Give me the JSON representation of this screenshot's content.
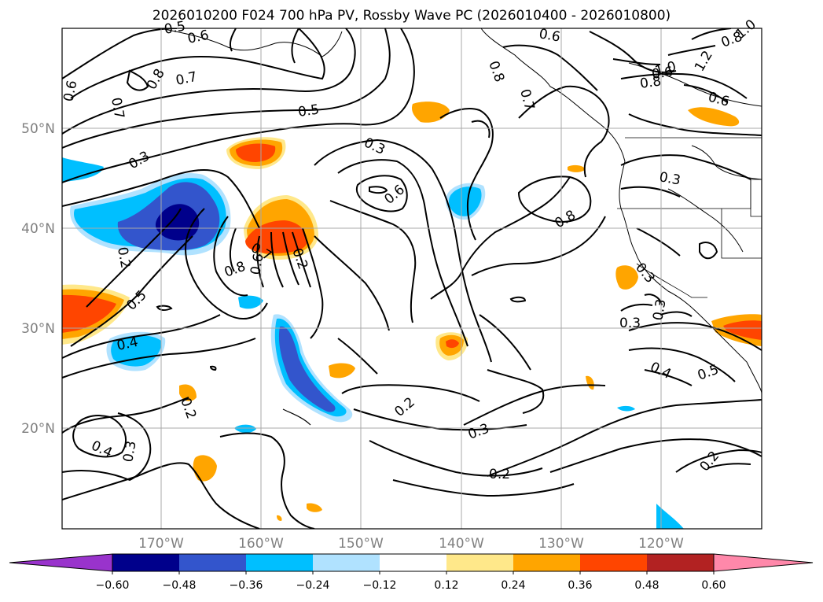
{
  "title": "2026010200 F024 700 hPa PV, Rossby Wave PC (2026010400 - 2026010800)",
  "colors": {
    "ocean": "#ffffff",
    "contour": "#000000",
    "grid": "#a9a9a9",
    "axis_label": "#808080"
  },
  "axes": {
    "lat_labels": [
      "20°N",
      "30°N",
      "40°N",
      "50°N"
    ],
    "lon_labels": [
      "170°W",
      "160°W",
      "150°W",
      "140°W",
      "130°W",
      "120°W"
    ]
  },
  "colorbar": {
    "ticks": [
      "−0.60",
      "−0.48",
      "−0.36",
      "−0.24",
      "−0.12",
      "0.12",
      "0.24",
      "0.36",
      "0.48",
      "0.60"
    ],
    "colors": [
      "#9933cc",
      "#00008b",
      "#3355cc",
      "#00bfff",
      "#b0e2ff",
      "#ffffff",
      "#ffe88a",
      "#ffa500",
      "#ff4500",
      "#b22222",
      "#ff88aa"
    ]
  },
  "contour_labels": [
    "0.5",
    "0.6",
    "0.6",
    "0.7",
    "0.8",
    "0.7",
    "0.6",
    "0.5",
    "0.3",
    "0.3",
    "0.6",
    "0.8",
    "0.8",
    "0.8",
    "0.7",
    "0.6",
    "1.0",
    "0.8",
    "1.0",
    "1.2",
    "0.6",
    "0.3",
    "0.2",
    "0.8",
    "0.7",
    "0.6",
    "0.2",
    "0.5",
    "0.4",
    "0.2",
    "0.3",
    "0.4",
    "0.2",
    "0.3",
    "0.2",
    "0.3",
    "0.3",
    "0.3",
    "0.4",
    "0.5",
    "0.2"
  ]
}
